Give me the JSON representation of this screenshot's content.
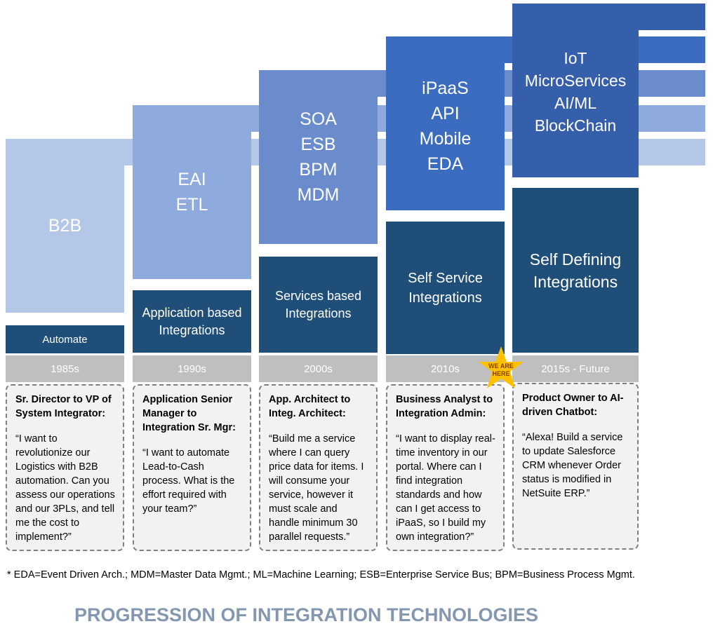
{
  "colors": {
    "dark": "#1f4e79",
    "year": "#bfbfbf",
    "quote_bg": "#f2f2f2",
    "title": "#8497b0",
    "star": "#ffc000"
  },
  "eras": [
    {
      "tech": "B2B",
      "style": "Automate",
      "year": "1985s",
      "role": "Sr. Director to VP of System Integrator:",
      "quote": "“I want to revolutionize our Logistics with B2B automation.  Can you assess our operations and our 3PLs, and tell me the cost to implement?”"
    },
    {
      "tech": "EAI\nETL",
      "style": "Application based\nIntegrations",
      "year": "1990s",
      "role": "Application Senior Manager to Integration Sr. Mgr:",
      "quote": "“I want to automate Lead-to-Cash process. What is the effort required with your team?”"
    },
    {
      "tech": "SOA\nESB\nBPM\nMDM",
      "style": "Services based\nIntegrations",
      "year": "2000s",
      "role": "App. Architect to Integ. Architect:",
      "quote": "“Build me a service where I can query price data for items. I will consume your service, however it must scale and handle minimum 30 parallel requests.”"
    },
    {
      "tech": "iPaaS\nAPI\nMobile\nEDA",
      "style": "Self Service\nIntegrations",
      "year": "2010s",
      "role": "Business Analyst to Integration Admin:",
      "quote": "“I want to display real-time inventory in our portal. Where can I find integration standards and how can I get access to iPaaS, so I build my own integration?”"
    },
    {
      "tech": "IoT\nMicroServices\nAI/ML\nBlockChain",
      "style": "Self Defining\nIntegrations",
      "year": "2015s - Future",
      "role": "Product Owner to AI-driven Chatbot:",
      "quote": "“Alexa! Build a service to update Salesforce CRM whenever Order status is modified in NetSuite ERP.”"
    }
  ],
  "star_label": "WE ARE\nHERE",
  "footnote": "* EDA=Event Driven Arch.; MDM=Master Data Mgmt.; ML=Machine Learning; ESB=Enterprise Service Bus; BPM=Business Process Mgmt.",
  "title": "PROGRESSION OF INTEGRATION TECHNOLOGIES"
}
